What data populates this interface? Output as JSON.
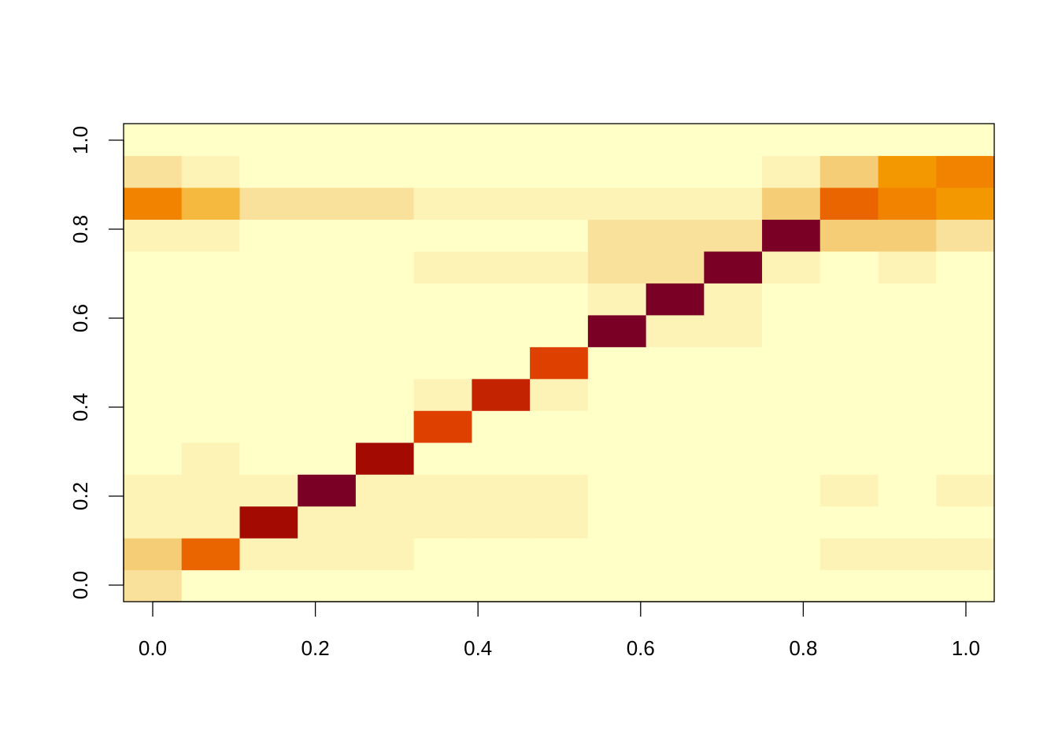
{
  "chart_data": {
    "type": "heatmap",
    "title": "",
    "xlabel": "",
    "ylabel": "",
    "x_ticks": [
      "0.0",
      "0.2",
      "0.4",
      "0.6",
      "0.8",
      "1.0"
    ],
    "y_ticks": [
      "0.0",
      "0.2",
      "0.4",
      "0.6",
      "0.8",
      "1.0"
    ],
    "x_tick_values": [
      0.0,
      0.2,
      0.4,
      0.6,
      0.8,
      1.0
    ],
    "y_tick_values": [
      0.0,
      0.2,
      0.4,
      0.6,
      0.8,
      1.0
    ],
    "xlim": [
      -0.0357,
      1.0357
    ],
    "ylim": [
      -0.0357,
      1.0357
    ],
    "x_centers": [
      0.0,
      0.0714,
      0.1429,
      0.2143,
      0.2857,
      0.3571,
      0.4286,
      0.5,
      0.5714,
      0.6429,
      0.7143,
      0.7857,
      0.8571,
      0.9286,
      1.0
    ],
    "y_centers": [
      0.0,
      0.0714,
      0.1429,
      0.2143,
      0.2857,
      0.3571,
      0.4286,
      0.5,
      0.5714,
      0.6429,
      0.7143,
      0.7857,
      0.8571,
      0.9286,
      1.0
    ],
    "color_scale": "heat (low = light yellow, high = dark red)",
    "palette": [
      "#FFFFC8",
      "#FEF3B7",
      "#F9E19C",
      "#F6CD77",
      "#F5B93F",
      "#F39800",
      "#F18300",
      "#EA6500",
      "#DE4000",
      "#C32301",
      "#A20A02",
      "#7A0026"
    ],
    "values": [
      [
        2,
        0,
        0,
        0,
        0,
        0,
        0,
        0,
        0,
        0,
        0,
        0,
        0,
        0,
        0
      ],
      [
        3,
        7,
        1,
        1,
        1,
        0,
        0,
        0,
        0,
        0,
        0,
        0,
        1,
        1,
        1
      ],
      [
        1,
        1,
        10,
        1,
        1,
        1,
        1,
        1,
        0,
        0,
        0,
        0,
        0,
        0,
        0
      ],
      [
        1,
        1,
        1,
        11,
        1,
        1,
        1,
        1,
        0,
        0,
        0,
        0,
        1,
        0,
        1
      ],
      [
        0,
        1,
        0,
        0,
        10,
        0,
        0,
        0,
        0,
        0,
        0,
        0,
        0,
        0,
        0
      ],
      [
        0,
        0,
        0,
        0,
        0,
        8,
        0,
        0,
        0,
        0,
        0,
        0,
        0,
        0,
        0
      ],
      [
        0,
        0,
        0,
        0,
        0,
        1,
        9,
        1,
        0,
        0,
        0,
        0,
        0,
        0,
        0
      ],
      [
        0,
        0,
        0,
        0,
        0,
        0,
        0,
        8,
        0,
        0,
        0,
        0,
        0,
        0,
        0
      ],
      [
        0,
        0,
        0,
        0,
        0,
        0,
        0,
        0,
        11,
        1,
        1,
        0,
        0,
        0,
        0
      ],
      [
        0,
        0,
        0,
        0,
        0,
        0,
        0,
        0,
        1,
        11,
        1,
        0,
        0,
        0,
        0
      ],
      [
        0,
        0,
        0,
        0,
        0,
        1,
        1,
        1,
        2,
        2,
        11,
        1,
        0,
        1,
        0
      ],
      [
        1,
        1,
        0,
        0,
        0,
        0,
        0,
        0,
        2,
        2,
        2,
        11,
        3,
        3,
        2
      ],
      [
        6,
        4,
        2,
        2,
        2,
        1,
        1,
        1,
        1,
        1,
        1,
        3,
        7,
        6,
        5
      ],
      [
        2,
        1,
        0,
        0,
        0,
        0,
        0,
        0,
        0,
        0,
        0,
        1,
        3,
        5,
        6
      ],
      [
        0,
        0,
        0,
        0,
        0,
        0,
        0,
        0,
        0,
        0,
        0,
        0,
        0,
        0,
        0
      ]
    ]
  }
}
